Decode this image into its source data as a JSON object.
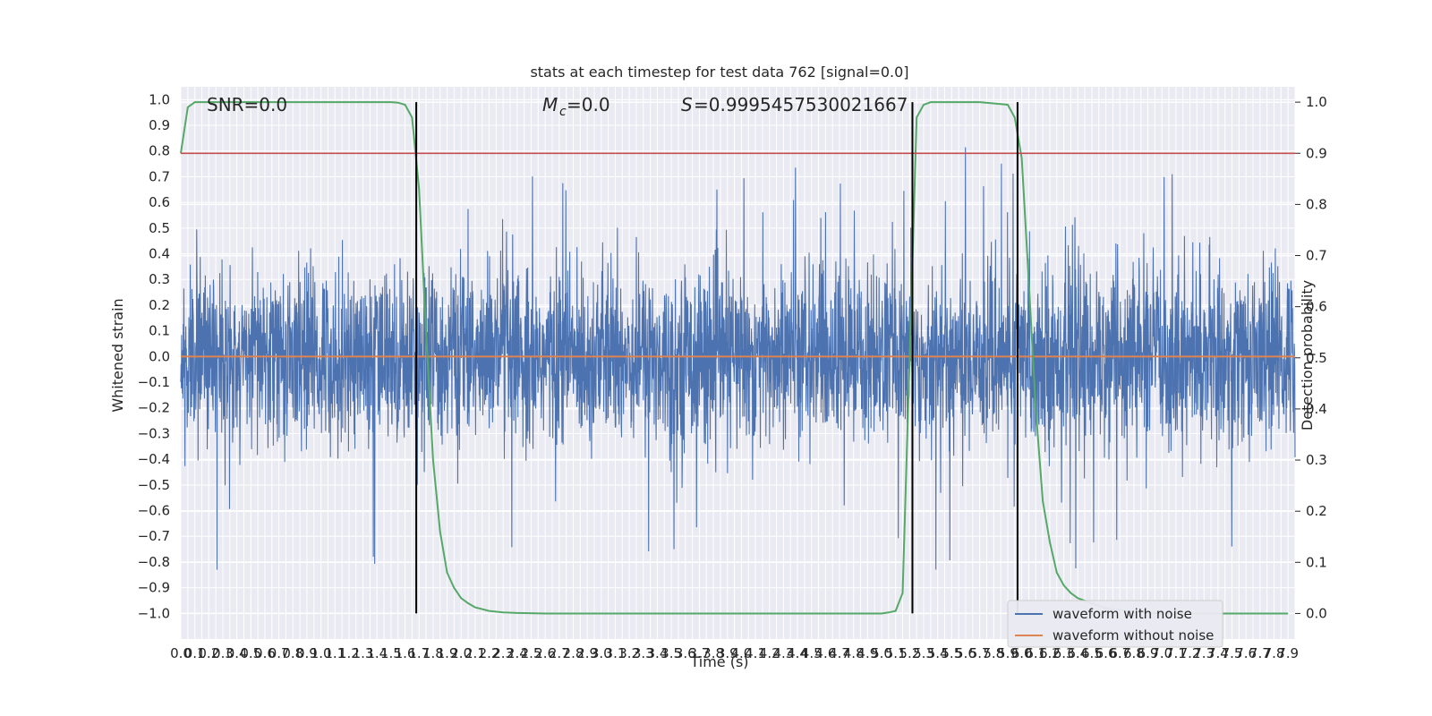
{
  "chart_data": {
    "type": "line",
    "title": "stats at each timestep for test data 762 [signal=0.0]",
    "xlabel": "Time (s)",
    "ylabel_left": "Whitened strain",
    "ylabel_right": "Detection probability",
    "xlim": [
      0.0,
      7.95
    ],
    "ylim_left": [
      -1.1,
      1.05
    ],
    "ylim_right": [
      -0.05,
      1.03
    ],
    "grid": true,
    "x_tick_step": 0.05,
    "x_ticks": [
      "0.0",
      "0.1",
      "0.2",
      "0.3",
      "0.4",
      "0.5",
      "0.6",
      "0.7",
      "0.8",
      "0.9",
      "1.0",
      "1.1",
      "1.2",
      "1.3",
      "1.4",
      "1.5",
      "1.6",
      "1.7",
      "1.8",
      "1.9",
      "2.0",
      "2.1",
      "2.2",
      "2.3",
      "2.4",
      "2.5",
      "2.6",
      "2.7",
      "2.8",
      "2.9",
      "3.0",
      "3.1",
      "3.2",
      "3.3",
      "3.4",
      "3.5",
      "3.6",
      "3.7",
      "3.8",
      "3.9",
      "4.0",
      "4.1",
      "4.2",
      "4.3",
      "4.4",
      "4.5",
      "4.6",
      "4.7",
      "4.8",
      "4.9",
      "5.0",
      "5.1",
      "5.2",
      "5.3",
      "5.4",
      "5.5",
      "5.6",
      "5.7",
      "5.8",
      "5.9",
      "6.0",
      "6.1",
      "6.2",
      "6.3",
      "6.4",
      "6.5",
      "6.6",
      "6.7",
      "6.8",
      "6.9",
      "7.0",
      "7.1",
      "7.2",
      "7.3",
      "7.4",
      "7.5",
      "7.6",
      "7.7",
      "7.8",
      "7.9"
    ],
    "y_ticks_left": [
      "1.0",
      "0.9",
      "0.8",
      "0.7",
      "0.6",
      "0.5",
      "0.4",
      "0.3",
      "0.2",
      "0.1",
      "0.0",
      "-0.1",
      "-0.2",
      "-0.3",
      "-0.4",
      "-0.5",
      "-0.6",
      "-0.7",
      "-0.8",
      "-0.9",
      "-1.0"
    ],
    "y_ticks_right": [
      "1.0",
      "0.9",
      "0.8",
      "0.7",
      "0.6",
      "0.5",
      "0.4",
      "0.3",
      "0.2",
      "0.1",
      "0.0"
    ],
    "annotations": {
      "snr": "SNR=0.0",
      "mc": "=0.0",
      "s": "=0.9995457530021667"
    },
    "series": [
      {
        "name": "waveform with noise",
        "color": "#4c72b0",
        "description": "noise-only whitened strain, amplitude roughly within ±0.4 with spikes up to 0.94 and down to -1.0",
        "axis": "left",
        "peak_max": 0.94,
        "peak_min": -1.0
      },
      {
        "name": "waveform without noise",
        "color": "#dd8452",
        "axis": "left",
        "value": 0.0
      },
      {
        "color": "#55a868",
        "axis": "right",
        "x": [
          0.0,
          0.05,
          0.1,
          0.2,
          0.5,
          1.0,
          1.5,
          1.55,
          1.6,
          1.65,
          1.7,
          1.75,
          1.8,
          1.85,
          1.9,
          1.95,
          2.0,
          2.05,
          2.1,
          2.2,
          2.3,
          2.4,
          2.6,
          3.0,
          4.0,
          5.0,
          5.05,
          5.1,
          5.15,
          5.2,
          5.25,
          5.3,
          5.35,
          5.4,
          5.5,
          5.7,
          5.9,
          5.95,
          6.0,
          6.05,
          6.1,
          6.15,
          6.2,
          6.25,
          6.3,
          6.35,
          6.4,
          6.5,
          6.6,
          6.8,
          7.0,
          7.5,
          7.9
        ],
        "y": [
          0.9,
          0.99,
          1.0,
          1.0,
          1.0,
          1.0,
          1.0,
          0.999,
          0.995,
          0.97,
          0.83,
          0.55,
          0.3,
          0.16,
          0.08,
          0.05,
          0.03,
          0.02,
          0.012,
          0.005,
          0.002,
          0.001,
          0.0,
          0.0,
          0.0,
          0.0,
          0.002,
          0.005,
          0.04,
          0.5,
          0.97,
          0.995,
          1.0,
          1.0,
          1.0,
          1.0,
          0.995,
          0.97,
          0.89,
          0.65,
          0.4,
          0.22,
          0.14,
          0.08,
          0.055,
          0.04,
          0.03,
          0.02,
          0.01,
          0.003,
          0.0,
          0.0,
          0.0
        ]
      },
      {
        "color": "#c44e52",
        "axis": "right",
        "value": 0.9
      }
    ],
    "vlines": [
      1.68,
      5.22,
      5.97
    ],
    "vline_color": "#000000",
    "legend_placement": "lower-right"
  }
}
